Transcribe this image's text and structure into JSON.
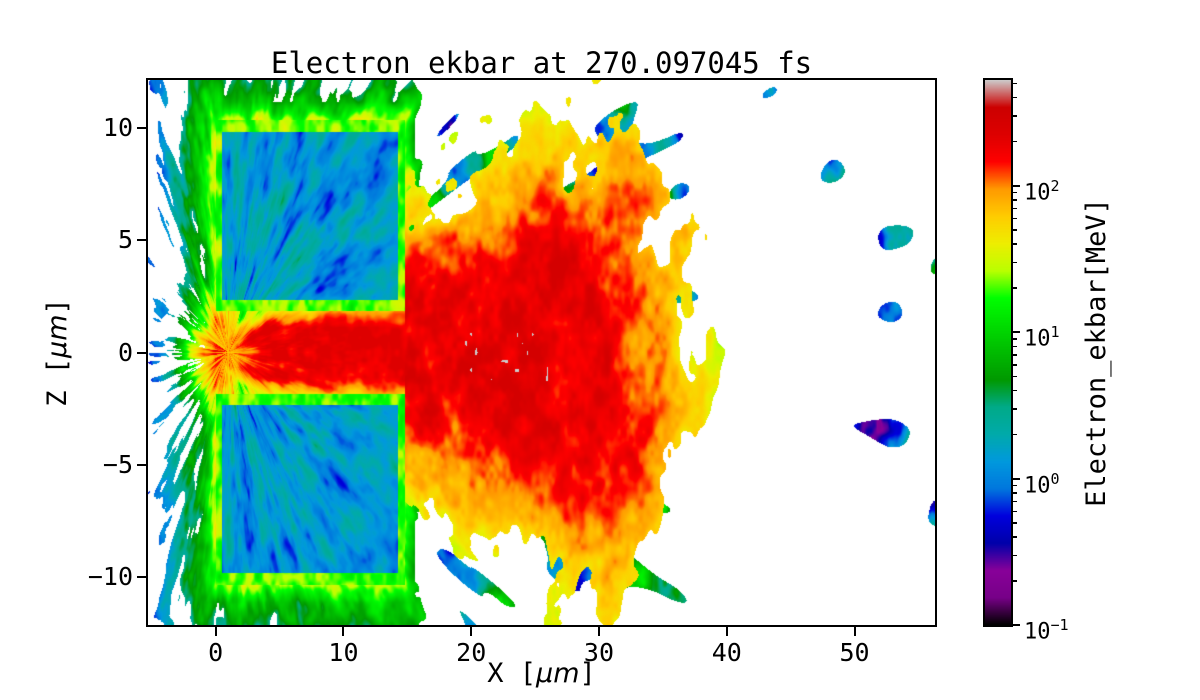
{
  "figure": {
    "title": "Electron_ekbar at 270.097045 fs",
    "background": "#ffffff"
  },
  "axes": {
    "xlabel_pre": "X [",
    "xlabel_unit": "μm",
    "xlabel_post": "]",
    "ylabel_pre": "Z [",
    "ylabel_unit": "μm",
    "ylabel_post": "]"
  },
  "chart_data": {
    "type": "heatmap",
    "title": "Electron_ekbar at 270.097045 fs",
    "xlabel": "X [μm]",
    "ylabel": "Z [μm]",
    "xlim": [
      -5.3,
      56.3
    ],
    "ylim": [
      -12.15,
      12.15
    ],
    "x_ticks": [
      0,
      10,
      20,
      30,
      40,
      50
    ],
    "y_ticks": [
      -10,
      -5,
      0,
      5,
      10
    ],
    "grid": false,
    "legend": "none",
    "colorbar": {
      "label": "Electron_ekbar[MeV]",
      "scale": "log",
      "vmin": 0.1,
      "vmax": 525,
      "tick_exponents": [
        2,
        1,
        0,
        -1
      ],
      "colormap": "nipy_spectral",
      "position": "right"
    },
    "content": {
      "quantity": "Electron_ekbar",
      "unit": "MeV",
      "time_fs": 270.097045,
      "description": "Pseudocolor map of electron mean kinetic energy from a laser-plasma simulation: two cold target blocks (blue, ~0.3-1 MeV) span x=0-14.8 um above and below a channel |z|<1.85 um; a hot electron jet (red, ~100-300 MeV) fills the channel and expands in a cone to x~35 um; a green ~5-20 MeV halo surrounds the target; sparse 0.1-10 MeV filaments scatter out to x~55 um.",
      "target_blocks": [
        {
          "x_range": [
            0,
            14.8
          ],
          "z_range": [
            1.85,
            10.35
          ],
          "energy_MeV": 0.5
        },
        {
          "x_range": [
            0,
            14.8
          ],
          "z_range": [
            -10.35,
            -1.85
          ],
          "energy_MeV": 0.5
        }
      ],
      "channel": {
        "x_range": [
          0,
          14.8
        ],
        "z_range": [
          -1.85,
          1.85
        ],
        "energy_MeV": 180
      },
      "jet": {
        "apex": [
          1,
          0
        ],
        "max_x": 35,
        "core_energy_MeV": 200,
        "half_width_at_x30_um": 9
      },
      "halo_energy_MeV": 10,
      "hot_spots": [
        {
          "x": 22,
          "z": 0,
          "energy_MeV": 520
        }
      ]
    }
  }
}
